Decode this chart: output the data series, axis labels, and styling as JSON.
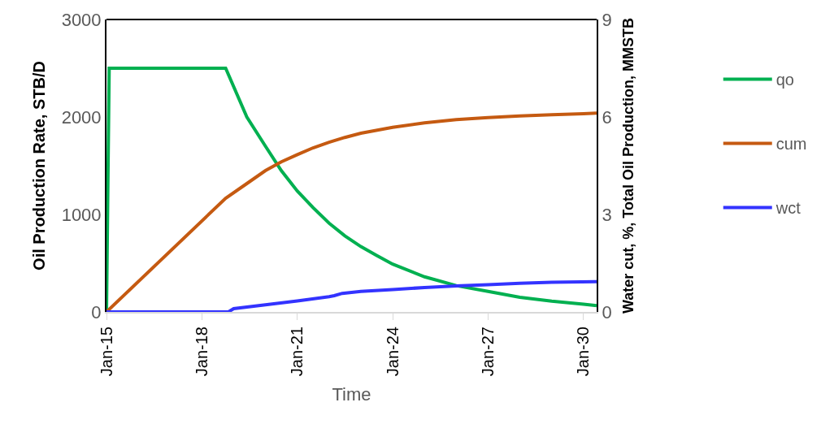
{
  "chart_data": {
    "type": "line",
    "xlabel": "Time",
    "ylabel": "Oil Production Rate, STB/D",
    "y2label": "Water cut, %, Total Oil Production, MMSTB",
    "xlim": [
      "2015-01-01",
      "2030-06-01"
    ],
    "xticks": [
      {
        "value": "2015-01-01",
        "label": "Jan-15"
      },
      {
        "value": "2018-01-01",
        "label": "Jan-18"
      },
      {
        "value": "2021-01-01",
        "label": "Jan-21"
      },
      {
        "value": "2024-01-01",
        "label": "Jan-24"
      },
      {
        "value": "2027-01-01",
        "label": "Jan-27"
      },
      {
        "value": "2030-01-01",
        "label": "Jan-30"
      }
    ],
    "ylim": [
      0,
      3000
    ],
    "yticks": [
      0,
      1000,
      2000,
      3000
    ],
    "y2lim": [
      0,
      9
    ],
    "y2ticks": [
      0,
      3,
      6,
      9
    ],
    "legend": "right",
    "marker": "none",
    "line_style": "solid",
    "series": [
      {
        "name": "qo",
        "color": "#00b050",
        "x": [
          "2015-01-01",
          "2015-02-01",
          "2018-10-01",
          "2019-06-01",
          "2020-01-01",
          "2020-07-01",
          "2021-01-01",
          "2021-07-01",
          "2022-01-01",
          "2022-07-01",
          "2023-01-01",
          "2023-07-01",
          "2024-01-01",
          "2025-01-01",
          "2026-01-01",
          "2027-01-01",
          "2028-01-01",
          "2029-01-01",
          "2030-01-01",
          "2030-06-01"
        ],
        "values": [
          0,
          2500,
          2500,
          2000,
          1700,
          1450,
          1240,
          1070,
          910,
          780,
          670,
          580,
          490,
          360,
          270,
          210,
          150,
          110,
          80,
          65
        ]
      },
      {
        "name": "cum",
        "color": "#c55a11",
        "axis": "y2",
        "x": [
          "2015-01-01",
          "2018-10-01",
          "2019-06-01",
          "2020-01-01",
          "2020-07-01",
          "2021-01-01",
          "2021-07-01",
          "2022-01-01",
          "2022-07-01",
          "2023-01-01",
          "2024-01-01",
          "2025-01-01",
          "2026-01-01",
          "2027-01-01",
          "2028-01-01",
          "2029-01-01",
          "2030-01-01",
          "2030-06-01"
        ],
        "values": [
          0,
          3.5,
          3.95,
          4.35,
          4.62,
          4.84,
          5.05,
          5.22,
          5.37,
          5.5,
          5.68,
          5.82,
          5.92,
          5.98,
          6.03,
          6.07,
          6.1,
          6.12
        ]
      },
      {
        "name": "wct",
        "color": "#3333ff",
        "axis": "y2",
        "x": [
          "2015-01-01",
          "2018-11-01",
          "2019-01-01",
          "2020-01-01",
          "2021-01-01",
          "2022-01-01",
          "2022-03-01",
          "2022-06-01",
          "2023-01-01",
          "2024-01-01",
          "2025-01-01",
          "2026-01-01",
          "2027-01-01",
          "2028-01-01",
          "2029-01-01",
          "2030-06-01"
        ],
        "values": [
          0,
          0,
          0.1,
          0.22,
          0.34,
          0.47,
          0.5,
          0.57,
          0.63,
          0.69,
          0.75,
          0.8,
          0.84,
          0.88,
          0.91,
          0.93
        ]
      }
    ]
  }
}
